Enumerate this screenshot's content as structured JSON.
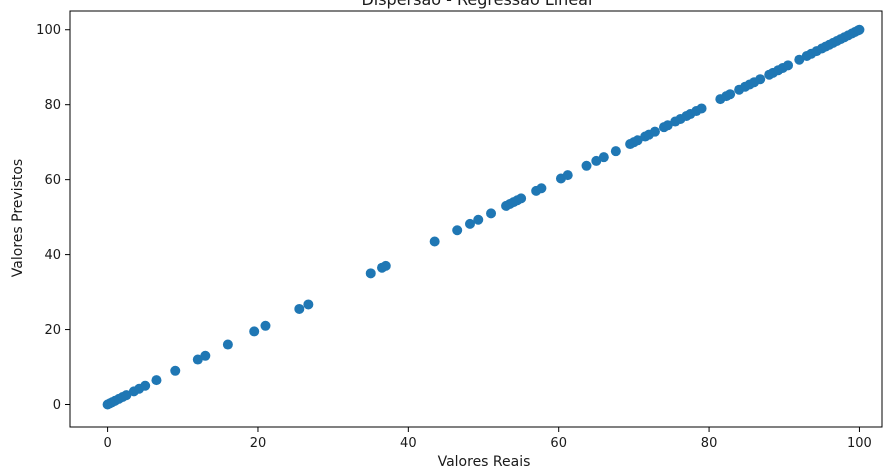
{
  "chart_data": {
    "type": "scatter",
    "title": "Dispersão - Regressão Linear",
    "xlabel": "Valores Reais",
    "ylabel": "Valores Previstos",
    "xlim": [
      -5,
      103
    ],
    "ylim": [
      -6,
      105
    ],
    "xticks": [
      0,
      20,
      40,
      60,
      80,
      100
    ],
    "yticks": [
      0,
      20,
      40,
      60,
      80,
      100
    ],
    "grid": false,
    "point_color": "#1f77b4",
    "x": [
      0,
      0.3,
      0.6,
      1.0,
      1.5,
      2.0,
      2.5,
      3.5,
      4.2,
      5.0,
      6.5,
      9.0,
      12.0,
      13.0,
      16.0,
      19.5,
      21.0,
      25.5,
      26.7,
      35.0,
      36.5,
      37.0,
      43.5,
      46.5,
      48.2,
      49.3,
      51.0,
      53.0,
      53.5,
      54.0,
      54.5,
      55.0,
      57.0,
      57.7,
      60.3,
      61.2,
      63.7,
      65.0,
      66.0,
      67.6,
      69.5,
      70.0,
      70.5,
      71.5,
      72.0,
      72.8,
      74.0,
      74.5,
      75.5,
      76.2,
      77.0,
      77.5,
      78.3,
      79.0,
      81.5,
      82.3,
      82.8,
      84.0,
      84.8,
      85.4,
      86.0,
      86.8,
      88.0,
      88.5,
      89.2,
      89.8,
      90.5,
      92.0,
      93.0,
      93.6,
      94.3,
      95.0,
      95.5,
      96.0,
      96.5,
      97.0,
      97.5,
      98.0,
      98.5,
      99.0,
      99.4,
      99.8,
      100.0
    ],
    "y": [
      0,
      0.3,
      0.6,
      1.0,
      1.5,
      2.0,
      2.5,
      3.5,
      4.2,
      5.0,
      6.5,
      9.0,
      12.0,
      13.0,
      16.0,
      19.5,
      21.0,
      25.5,
      26.7,
      35.0,
      36.5,
      37.0,
      43.5,
      46.5,
      48.2,
      49.3,
      51.0,
      53.0,
      53.5,
      54.0,
      54.5,
      55.0,
      57.0,
      57.7,
      60.3,
      61.2,
      63.7,
      65.0,
      66.0,
      67.6,
      69.5,
      70.0,
      70.5,
      71.5,
      72.0,
      72.8,
      74.0,
      74.5,
      75.5,
      76.2,
      77.0,
      77.5,
      78.3,
      79.0,
      81.5,
      82.3,
      82.8,
      84.0,
      84.8,
      85.4,
      86.0,
      86.8,
      88.0,
      88.5,
      89.2,
      89.8,
      90.5,
      92.0,
      93.0,
      93.6,
      94.3,
      95.0,
      95.5,
      96.0,
      96.5,
      97.0,
      97.5,
      98.0,
      98.5,
      99.0,
      99.4,
      99.8,
      100.0
    ]
  }
}
